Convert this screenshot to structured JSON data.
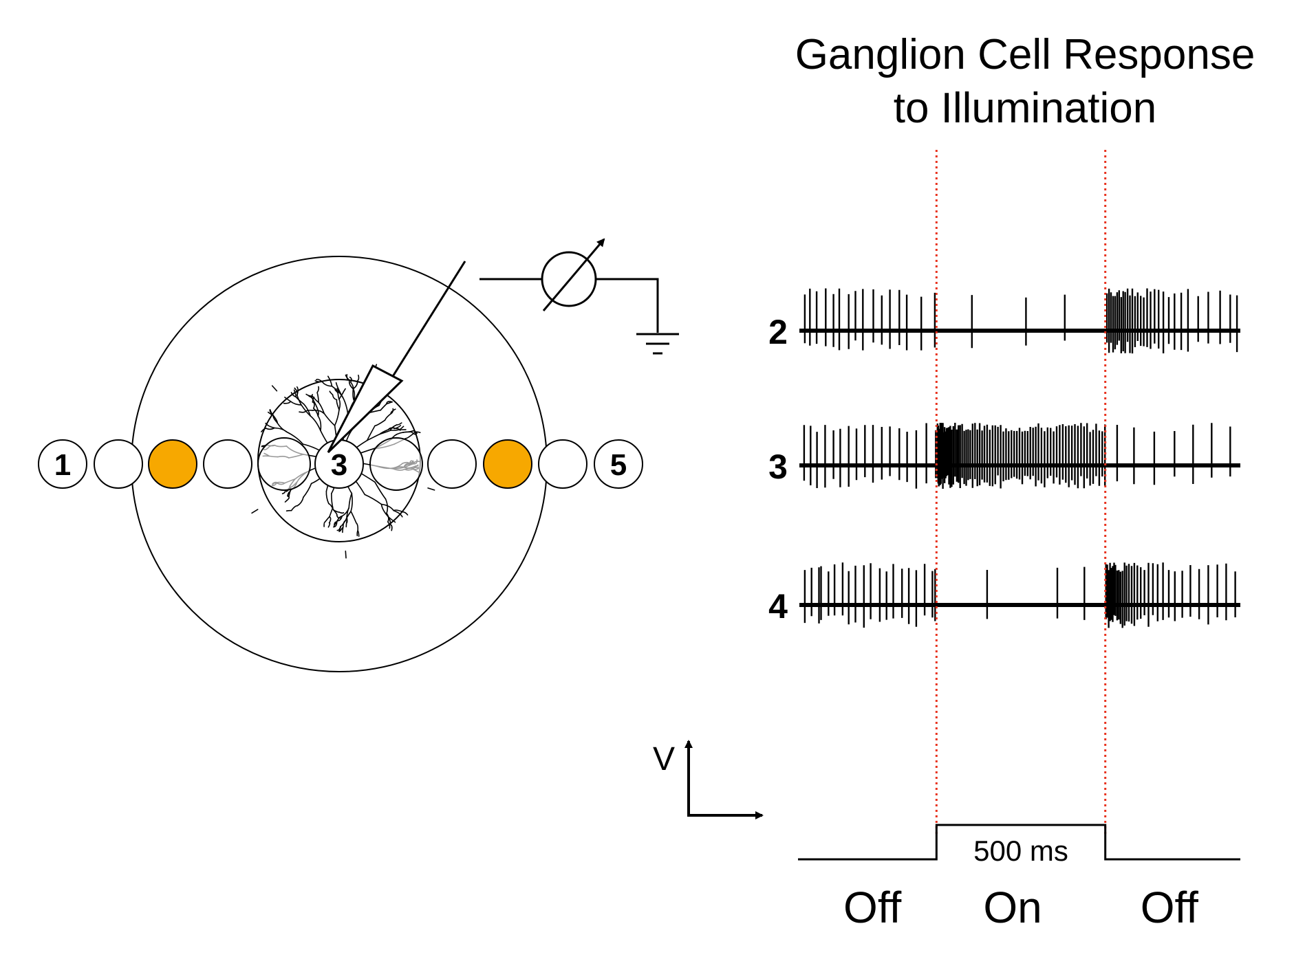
{
  "title": {
    "line1": "Ganglion Cell Response",
    "line2": "to Illumination"
  },
  "colors": {
    "ink": "#000000",
    "highlight": "#f7a800",
    "marker": "#e8321e"
  },
  "diagram": {
    "cells": [
      {
        "label": "1",
        "fill": "white"
      },
      {
        "label": "",
        "fill": "white"
      },
      {
        "label": "",
        "fill": "highlight"
      },
      {
        "label": "",
        "fill": "white"
      },
      {
        "label": "",
        "fill": "white"
      },
      {
        "label": "3",
        "fill": "white"
      },
      {
        "label": "",
        "fill": "white"
      },
      {
        "label": "",
        "fill": "white"
      },
      {
        "label": "",
        "fill": "highlight"
      },
      {
        "label": "",
        "fill": "white"
      },
      {
        "label": "5",
        "fill": "white"
      }
    ],
    "icons": [
      "electrode-icon",
      "voltmeter-icon",
      "ground-icon",
      "dendritic-tree-icon"
    ]
  },
  "recording": {
    "time_range_ms": [
      0,
      1300
    ],
    "stimulus_on_ms": [
      400,
      900
    ],
    "traces": [
      {
        "label": "2",
        "spikes_ms": [
          10,
          25,
          45,
          72,
          95,
          112,
          140,
          160,
          182,
          213,
          238,
          262,
          290,
          312,
          355,
          395,
          505,
          665,
          780,
          905,
          911,
          917,
          923,
          929,
          935,
          941,
          947,
          953,
          959,
          966,
          973,
          980,
          988,
          996,
          1005,
          1014,
          1024,
          1034,
          1046,
          1058,
          1072,
          1088,
          1105,
          1125,
          1145,
          1175,
          1205,
          1240,
          1270,
          1290
        ]
      },
      {
        "label": "3",
        "spikes_ms": [
          8,
          27,
          46,
          70,
          95,
          115,
          140,
          163,
          188,
          212,
          238,
          262,
          290,
          313,
          340,
          370,
          398,
          403,
          405,
          407,
          409,
          411,
          413,
          415,
          417,
          419,
          421,
          424,
          427,
          430,
          433,
          437,
          441,
          445,
          450,
          455,
          460,
          465,
          470,
          476,
          482,
          488,
          494,
          500,
          507,
          514,
          521,
          528,
          535,
          542,
          550,
          558,
          566,
          574,
          582,
          590,
          598,
          606,
          614,
          622,
          630,
          638,
          646,
          654,
          662,
          670,
          678,
          686,
          694,
          702,
          711,
          720,
          729,
          738,
          747,
          756,
          765,
          774,
          783,
          792,
          801,
          810,
          819,
          828,
          837,
          846,
          855,
          864,
          873,
          882,
          891,
          899,
          935,
          985,
          1045,
          1105,
          1160,
          1215,
          1270
        ]
      },
      {
        "label": "4",
        "spikes_ms": [
          10,
          30,
          52,
          58,
          80,
          98,
          122,
          140,
          160,
          185,
          205,
          232,
          252,
          272,
          298,
          318,
          340,
          365,
          388,
          396,
          550,
          758,
          838,
          902,
          906,
          910,
          914,
          918,
          922,
          926,
          930,
          935,
          940,
          945,
          951,
          957,
          963,
          970,
          978,
          986,
          995,
          1005,
          1016,
          1028,
          1041,
          1055,
          1071,
          1088,
          1106,
          1128,
          1152,
          1178,
          1205,
          1232,
          1258,
          1285
        ]
      }
    ]
  },
  "stimulus": {
    "axis_label": "V",
    "duration_label": "500 ms",
    "phase_labels": [
      "Off",
      "On",
      "Off"
    ]
  }
}
